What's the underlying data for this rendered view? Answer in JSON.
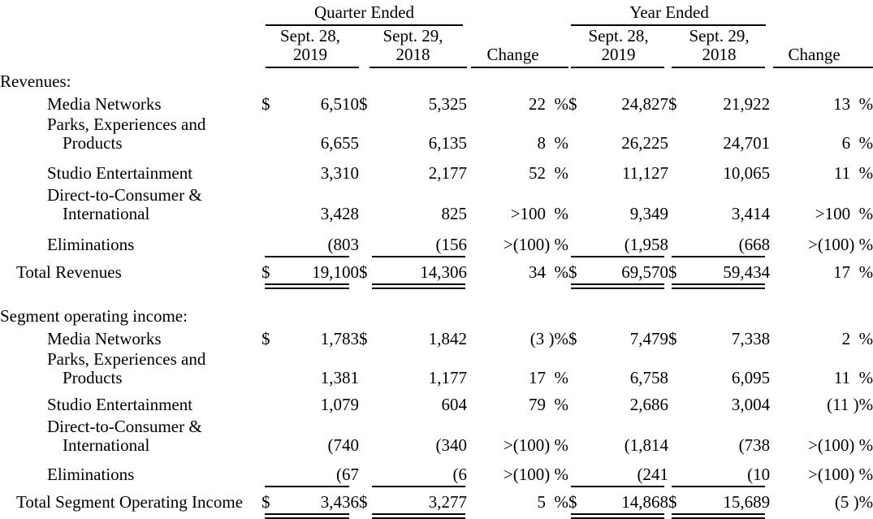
{
  "header": {
    "groups": [
      {
        "label": "Quarter Ended"
      },
      {
        "label": "Year Ended"
      }
    ],
    "period_columns": [
      {
        "line1": "Sept. 28,",
        "line2": "2019"
      },
      {
        "line1": "Sept. 29,",
        "line2": "2018"
      },
      {
        "line1": "Sept. 28,",
        "line2": "2019"
      },
      {
        "line1": "Sept. 29,",
        "line2": "2018"
      }
    ],
    "change_label": "Change"
  },
  "sections": [
    {
      "heading": "Revenues:",
      "rows": [
        {
          "label": [
            "Media Networks"
          ],
          "values": {
            "q1d": "$",
            "q1": "6,510",
            "q2d": "$",
            "q2": "5,325",
            "qc": "22  %",
            "y1d": "$",
            "y1": "24,827",
            "y2d": "$",
            "y2": "21,922",
            "yc": "13  %"
          }
        },
        {
          "label": [
            "Parks, Experiences and",
            "Products"
          ],
          "values": {
            "q1d": "",
            "q1": "6,655",
            "q2d": "",
            "q2": "6,135",
            "qc": "8  %",
            "y1d": "",
            "y1": "26,225",
            "y2d": "",
            "y2": "24,701",
            "yc": "6  %"
          }
        },
        {
          "label": [
            "Studio Entertainment"
          ],
          "values": {
            "q1d": "",
            "q1": "3,310",
            "q2d": "",
            "q2": "2,177",
            "qc": "52  %",
            "y1d": "",
            "y1": "11,127",
            "y2d": "",
            "y2": "10,065",
            "yc": "11  %"
          }
        },
        {
          "label": [
            "Direct-to-Consumer &",
            "International"
          ],
          "values": {
            "q1d": "",
            "q1": "3,428",
            "q2d": "",
            "q2": "825",
            "qc": ">100  %",
            "y1d": "",
            "y1": "9,349",
            "y2d": "",
            "y2": "3,414",
            "yc": ">100  %"
          }
        },
        {
          "label": [
            "Eliminations"
          ],
          "values": {
            "q1d": "",
            "q1": "(803)",
            "q2d": "",
            "q2": "(156)",
            "qc": ">(100) %",
            "y1d": "",
            "y1": "(1,958)",
            "y2d": "",
            "y2": "(668)",
            "yc": ">(100) %"
          }
        }
      ],
      "total": {
        "label": [
          "Total Revenues"
        ],
        "values": {
          "q1d": "$",
          "q1": "19,100",
          "q2d": "$",
          "q2": "14,306",
          "qc": "34  %",
          "y1d": "$",
          "y1": "69,570",
          "y2d": "$",
          "y2": "59,434",
          "yc": "17  %"
        }
      }
    },
    {
      "heading": "Segment operating income:",
      "rows": [
        {
          "label": [
            "Media Networks"
          ],
          "values": {
            "q1d": "$",
            "q1": "1,783",
            "q2d": "$",
            "q2": "1,842",
            "qc": "(3 )%",
            "y1d": "$",
            "y1": "7,479",
            "y2d": "$",
            "y2": "7,338",
            "yc": "2  %"
          }
        },
        {
          "label": [
            "Parks, Experiences and",
            "Products"
          ],
          "values": {
            "q1d": "",
            "q1": "1,381",
            "q2d": "",
            "q2": "1,177",
            "qc": "17  %",
            "y1d": "",
            "y1": "6,758",
            "y2d": "",
            "y2": "6,095",
            "yc": "11  %"
          }
        },
        {
          "label": [
            "Studio Entertainment"
          ],
          "values": {
            "q1d": "",
            "q1": "1,079",
            "q2d": "",
            "q2": "604",
            "qc": "79  %",
            "y1d": "",
            "y1": "2,686",
            "y2d": "",
            "y2": "3,004",
            "yc": "(11 )%"
          }
        },
        {
          "label": [
            "Direct-to-Consumer &",
            "International"
          ],
          "values": {
            "q1d": "",
            "q1": "(740)",
            "q2d": "",
            "q2": "(340)",
            "qc": ">(100) %",
            "y1d": "",
            "y1": "(1,814)",
            "y2d": "",
            "y2": "(738)",
            "yc": ">(100) %"
          }
        },
        {
          "label": [
            "Eliminations"
          ],
          "values": {
            "q1d": "",
            "q1": "(67)",
            "q2d": "",
            "q2": "(6)",
            "qc": ">(100) %",
            "y1d": "",
            "y1": "(241)",
            "y2d": "",
            "y2": "(10)",
            "yc": ">(100) %"
          }
        }
      ],
      "total": {
        "label": [
          "Total Segment Operating Income"
        ],
        "values": {
          "q1d": "$",
          "q1": "3,436",
          "q2d": "$",
          "q2": "3,277",
          "qc": "5  %",
          "y1d": "$",
          "y1": "14,868",
          "y2d": "$",
          "y2": "15,689",
          "yc": "(5 )%"
        }
      }
    }
  ]
}
